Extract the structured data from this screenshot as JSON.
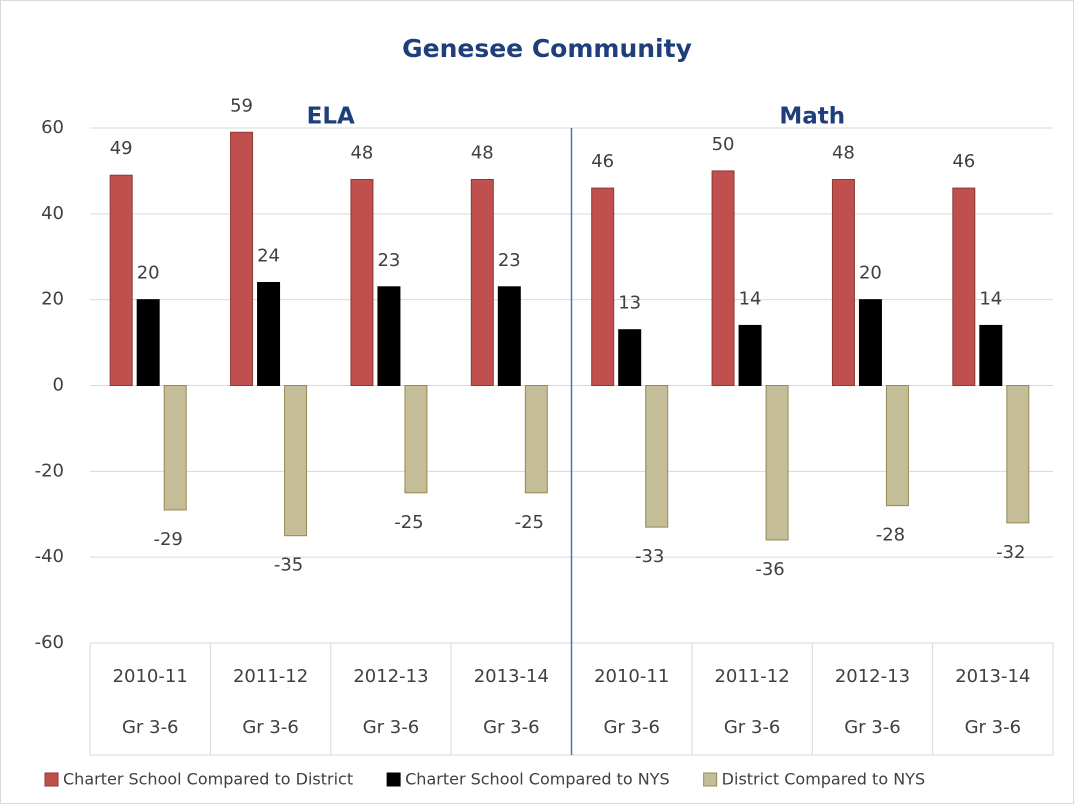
{
  "chart_data": {
    "type": "bar",
    "title": "Genesee Community",
    "groups": [
      "ELA",
      "Math"
    ],
    "categories": [
      "2010-11",
      "2011-12",
      "2012-13",
      "2013-14",
      "2010-11",
      "2011-12",
      "2012-13",
      "2013-14"
    ],
    "subcategories": [
      "Gr 3-6",
      "Gr 3-6",
      "Gr 3-6",
      "Gr 3-6",
      "Gr 3-6",
      "Gr 3-6",
      "Gr 3-6",
      "Gr 3-6"
    ],
    "series": [
      {
        "name": "Charter School Compared to District",
        "color": "#c0504d",
        "values": [
          49,
          59,
          48,
          48,
          46,
          50,
          48,
          46
        ]
      },
      {
        "name": "Charter School Compared to NYS",
        "color": "#000000",
        "values": [
          20,
          24,
          23,
          23,
          13,
          14,
          20,
          14
        ]
      },
      {
        "name": "District Compared to NYS",
        "color": "#c4bd97",
        "values": [
          -29,
          -35,
          -25,
          -25,
          -33,
          -36,
          -28,
          -32
        ]
      }
    ],
    "ylim": [
      -60,
      60
    ],
    "yticks": [
      -60,
      -40,
      -20,
      0,
      20,
      40,
      60
    ],
    "grid": true
  }
}
